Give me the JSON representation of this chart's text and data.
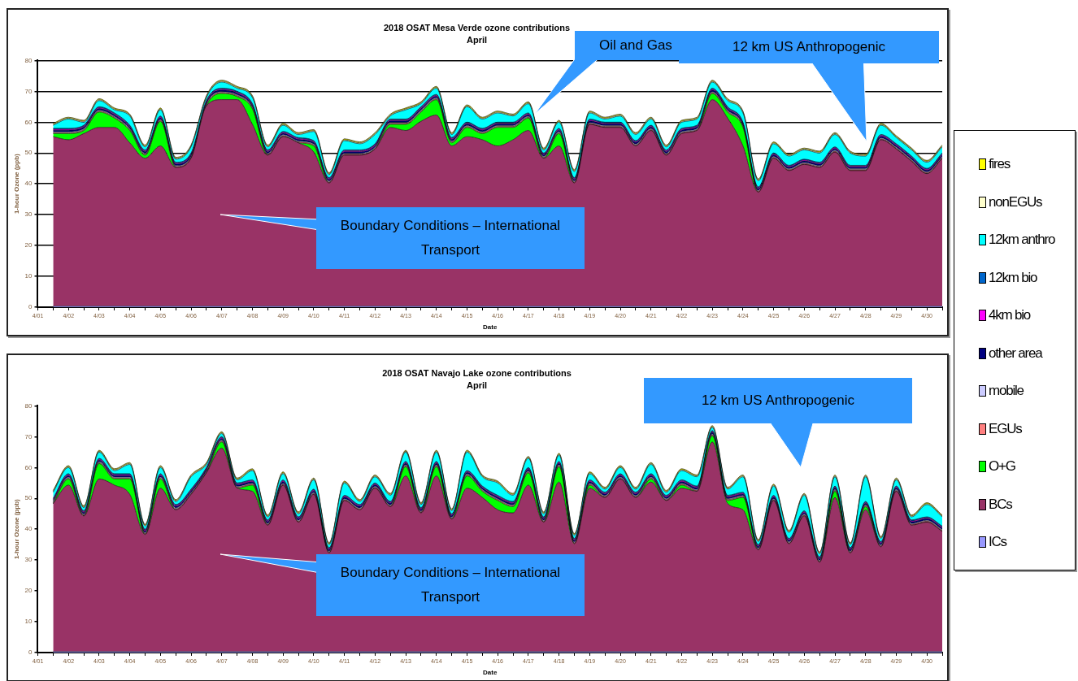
{
  "chart_data": [
    {
      "type": "area",
      "title": "2018 OSAT Mesa Verde ozone contributions",
      "subtitle": "April",
      "xlabel": "Date",
      "ylabel": "1-hour Ozone (ppb)",
      "stacked": true,
      "grid": "y",
      "legend": "right",
      "ylim": [
        0,
        80
      ],
      "yticks": [
        0,
        10,
        20,
        30,
        40,
        50,
        60,
        70,
        80
      ],
      "categories": [
        "4/01",
        null,
        "4/02",
        null,
        "4/03",
        null,
        "4/04",
        null,
        "4/05",
        null,
        "4/06",
        null,
        "4/07",
        null,
        "4/08",
        null,
        "4/09",
        null,
        "4/10",
        null,
        "4/11",
        null,
        "4/12",
        null,
        "4/13",
        null,
        "4/14",
        null,
        "4/15",
        null,
        "4/16",
        null,
        "4/17",
        null,
        "4/18",
        null,
        "4/19",
        null,
        "4/20",
        null,
        "4/21",
        null,
        "4/22",
        null,
        "4/23",
        null,
        "4/24",
        null,
        "4/25",
        null,
        "4/26",
        null,
        "4/27",
        null,
        "4/28",
        null,
        "4/29",
        null,
        "4/30",
        null
      ],
      "annotations": [
        "Oil and Gas",
        "12 km US Anthropogenic",
        "Boundary Conditions – International Transport"
      ],
      "series": [
        {
          "name": "ICs",
          "color": "#9999ff",
          "values": [
            null,
            0.3,
            0.3,
            0.3,
            0.3,
            0.3,
            0.3,
            0.3,
            0.3,
            0.3,
            0.3,
            0.3,
            0.3,
            0.3,
            0.3,
            0.3,
            0.3,
            0.3,
            0.3,
            0.3,
            0.3,
            0.3,
            0.3,
            0.3,
            0.3,
            0.3,
            0.3,
            0.3,
            0.3,
            0.3,
            0.3,
            0.3,
            0.3,
            0.3,
            0.3,
            0.3,
            0.3,
            0.3,
            0.3,
            0.3,
            0.3,
            0.3,
            0.3,
            0.3,
            0.3,
            0.3,
            0.3,
            0.3,
            0.3,
            0.3,
            0.3,
            0.3,
            0.3,
            0.3,
            0.3,
            0.3,
            0.3,
            0.3,
            0.3,
            0.3
          ]
        },
        {
          "name": "BCs",
          "color": "#993366",
          "values": [
            null,
            55,
            54,
            56,
            58,
            58,
            53,
            48,
            52,
            45,
            48,
            65,
            67,
            67,
            59,
            49,
            55,
            53,
            50,
            40,
            49,
            49,
            51,
            58,
            57,
            60,
            62,
            52,
            55,
            54,
            52,
            54,
            57,
            48,
            52,
            40,
            59,
            58,
            58,
            52,
            57,
            49,
            56,
            57,
            67,
            61,
            52,
            37,
            48,
            44,
            46,
            45,
            50,
            44,
            44,
            54,
            51,
            47,
            43,
            48
          ]
        },
        {
          "name": "O+G",
          "color": "#00ff00",
          "values": [
            null,
            1,
            2,
            1,
            5,
            3,
            4,
            1,
            8,
            0,
            0,
            0,
            2,
            1,
            5,
            0,
            0,
            0,
            2,
            0,
            0,
            0,
            0,
            1,
            2,
            3,
            5,
            1,
            3,
            2,
            6,
            4,
            4,
            0,
            4,
            0,
            0,
            0,
            0,
            0,
            0,
            0,
            0,
            0,
            2,
            2,
            6,
            0,
            0,
            0,
            0,
            0,
            0,
            0,
            0,
            0,
            0,
            0,
            0,
            0
          ]
        },
        {
          "name": "EGUs",
          "color": "#ff8080",
          "values": [
            null,
            0.3,
            0.3,
            0.3,
            0.3,
            0.3,
            0.3,
            0.3,
            0.3,
            0.3,
            0.3,
            0.3,
            0.3,
            0.3,
            0.3,
            0.3,
            0.3,
            0.3,
            0.3,
            0.3,
            0.3,
            0.3,
            0.3,
            0.3,
            0.3,
            0.3,
            0.3,
            0.3,
            0.3,
            0.3,
            0.3,
            0.3,
            0.3,
            0.3,
            0.3,
            0.3,
            0.3,
            0.3,
            0.3,
            0.3,
            0.3,
            0.3,
            0.3,
            0.3,
            0.3,
            0.3,
            0.3,
            0.3,
            0.3,
            0.3,
            0.3,
            0.3,
            0.3,
            0.3,
            0.3,
            0.3,
            0.3,
            0.3,
            0.3,
            0.3
          ]
        },
        {
          "name": "mobile",
          "color": "#ccccff",
          "values": [
            null,
            0.3,
            0.3,
            0.3,
            0.3,
            0.3,
            0.3,
            0.3,
            0.3,
            0.3,
            0.3,
            0.3,
            0.3,
            0.3,
            0.3,
            0.3,
            0.3,
            0.3,
            0.3,
            0.3,
            0.3,
            0.3,
            0.3,
            0.3,
            0.3,
            0.3,
            0.3,
            0.3,
            0.3,
            0.3,
            0.3,
            0.3,
            0.3,
            0.3,
            0.3,
            0.3,
            0.3,
            0.3,
            0.3,
            0.3,
            0.3,
            0.3,
            0.3,
            0.3,
            0.3,
            0.3,
            0.3,
            0.3,
            0.3,
            0.3,
            0.3,
            0.3,
            0.3,
            0.3,
            0.3,
            0.3,
            0.3,
            0.3,
            0.3,
            0.3
          ]
        },
        {
          "name": "other area",
          "color": "#000080",
          "values": [
            null,
            0.5,
            0.5,
            0.5,
            0.5,
            0.5,
            0.5,
            0.5,
            0.5,
            0.5,
            0.5,
            0.5,
            0.5,
            0.5,
            0.5,
            0.5,
            0.5,
            0.5,
            0.5,
            0.5,
            0.5,
            0.5,
            0.5,
            0.5,
            0.5,
            0.5,
            0.5,
            0.5,
            0.5,
            0.5,
            0.5,
            0.5,
            0.5,
            0.5,
            0.5,
            0.5,
            0.5,
            0.5,
            0.5,
            0.5,
            0.5,
            0.5,
            0.5,
            0.5,
            0.5,
            0.5,
            0.5,
            0.5,
            0.5,
            0.5,
            0.5,
            0.5,
            0.5,
            0.5,
            0.5,
            0.5,
            0.5,
            0.5,
            0.5,
            0.5
          ]
        },
        {
          "name": "4km bio",
          "color": "#ff00ff",
          "values": [
            null,
            0.3,
            0.3,
            0.3,
            0.3,
            0.3,
            0.3,
            0.3,
            0.3,
            0.3,
            0.3,
            0.3,
            0.3,
            0.3,
            0.3,
            0.3,
            0.3,
            0.3,
            0.3,
            0.3,
            0.3,
            0.3,
            0.3,
            0.3,
            0.3,
            0.3,
            0.3,
            0.3,
            0.3,
            0.3,
            0.3,
            0.3,
            0.3,
            0.3,
            0.3,
            0.3,
            0.3,
            0.3,
            0.3,
            0.3,
            0.3,
            0.3,
            0.3,
            0.3,
            0.3,
            0.3,
            0.3,
            0.3,
            0.3,
            0.3,
            0.3,
            0.3,
            0.3,
            0.3,
            0.3,
            0.3,
            0.3,
            0.3,
            0.3,
            0.3
          ]
        },
        {
          "name": "12km bio",
          "color": "#0066cc",
          "values": [
            null,
            0.3,
            0.3,
            0.3,
            0.3,
            0.3,
            0.3,
            0.3,
            0.3,
            0.3,
            0.3,
            0.3,
            0.3,
            0.3,
            0.3,
            0.3,
            0.3,
            0.3,
            0.3,
            0.3,
            0.3,
            0.3,
            0.3,
            0.3,
            0.3,
            0.3,
            0.3,
            0.3,
            0.3,
            0.3,
            0.3,
            0.3,
            0.3,
            0.3,
            0.3,
            0.3,
            0.3,
            0.3,
            0.3,
            0.3,
            0.3,
            0.3,
            0.3,
            0.3,
            0.3,
            0.3,
            0.3,
            0.3,
            0.3,
            0.3,
            0.3,
            0.3,
            0.3,
            0.3,
            0.3,
            0.3,
            0.3,
            0.3,
            0.3,
            0.3
          ]
        },
        {
          "name": "12km anthro",
          "color": "#00ffff",
          "values": [
            null,
            1,
            3,
            1,
            2,
            1,
            3,
            1,
            2,
            1,
            2,
            1,
            2,
            1,
            2,
            1,
            2,
            1,
            3,
            1,
            3,
            2,
            3,
            1,
            3,
            1,
            2,
            1,
            5,
            3,
            3,
            2,
            3,
            1,
            2,
            2,
            2,
            1,
            2,
            2,
            2,
            1,
            2,
            2,
            2,
            2,
            3,
            2,
            3,
            3,
            3,
            3,
            4,
            4,
            3,
            3,
            2,
            2,
            2,
            2
          ]
        },
        {
          "name": "nonEGUs",
          "color": "#ffffcc",
          "values": [
            null,
            0.3,
            0.3,
            0.3,
            0.3,
            0.3,
            0.3,
            0.3,
            0.3,
            0.3,
            0.3,
            0.3,
            0.3,
            0.3,
            0.3,
            0.3,
            0.3,
            0.3,
            0.3,
            0.3,
            0.3,
            0.3,
            0.3,
            0.3,
            0.3,
            0.3,
            0.3,
            0.3,
            0.3,
            0.3,
            0.3,
            0.3,
            0.3,
            0.3,
            0.3,
            0.3,
            0.3,
            0.3,
            0.3,
            0.3,
            0.3,
            0.3,
            0.3,
            0.3,
            0.3,
            0.3,
            0.3,
            0.3,
            0.3,
            0.3,
            0.3,
            0.3,
            0.3,
            0.3,
            0.3,
            0.3,
            0.3,
            0.3,
            0.3,
            0.3
          ]
        },
        {
          "name": "fires",
          "color": "#ffff00",
          "values": [
            null,
            0.3,
            0.3,
            0.3,
            0.3,
            0.3,
            0.3,
            0.3,
            0.3,
            0.3,
            0.3,
            0.3,
            0.3,
            0.3,
            0.3,
            0.3,
            0.3,
            0.3,
            0.3,
            0.3,
            0.3,
            0.3,
            0.3,
            0.3,
            0.3,
            0.3,
            0.3,
            0.3,
            0.3,
            0.3,
            0.3,
            0.3,
            0.3,
            0.3,
            0.3,
            0.3,
            0.3,
            0.3,
            0.3,
            0.3,
            0.3,
            0.3,
            0.3,
            0.3,
            0.3,
            0.3,
            0.3,
            0.3,
            0.3,
            0.3,
            0.3,
            0.3,
            0.3,
            0.3,
            0.3,
            0.3,
            0.3,
            0.3,
            0.3,
            0.3
          ]
        }
      ]
    },
    {
      "type": "area",
      "title": "2018 OSAT Navajo Lake ozone contributions",
      "subtitle": "April",
      "xlabel": "Date",
      "ylabel": "1-hour Ozone (ppb)",
      "stacked": true,
      "ylim": [
        0,
        80
      ],
      "yticks": [
        0,
        10,
        20,
        30,
        40,
        50,
        60,
        70,
        80
      ],
      "categories": [
        "4/01",
        null,
        "4/02",
        null,
        "4/03",
        null,
        "4/04",
        null,
        "4/05",
        null,
        "4/06",
        null,
        "4/07",
        null,
        "4/08",
        null,
        "4/09",
        null,
        "4/10",
        null,
        "4/11",
        null,
        "4/12",
        null,
        "4/13",
        null,
        "4/14",
        null,
        "4/15",
        null,
        "4/16",
        null,
        "4/17",
        null,
        "4/18",
        null,
        "4/19",
        null,
        "4/20",
        null,
        "4/21",
        null,
        "4/22",
        null,
        "4/23",
        null,
        "4/24",
        null,
        "4/25",
        null,
        "4/26",
        null,
        "4/27",
        null,
        "4/28",
        null,
        "4/29",
        null,
        "4/30",
        null
      ],
      "annotations": [
        "12 km US Anthropogenic",
        "Boundary Conditions – International Transport"
      ],
      "series": [
        {
          "color": "#9999ff",
          "values": [
            null,
            0.3,
            0.3,
            0.3,
            0.3,
            0.3,
            0.3,
            0.3,
            0.3,
            0.3,
            0.3,
            0.3,
            0.3,
            0.3,
            0.3,
            0.3,
            0.3,
            0.3,
            0.3,
            0.3,
            0.3,
            0.3,
            0.3,
            0.3,
            0.3,
            0.3,
            0.3,
            0.3,
            0.3,
            0.3,
            0.3,
            0.3,
            0.3,
            0.3,
            0.3,
            0.3,
            0.3,
            0.3,
            0.3,
            0.3,
            0.3,
            0.3,
            0.3,
            0.3,
            0.3,
            0.3,
            0.3,
            0.3,
            0.3,
            0.3,
            0.3,
            0.3,
            0.3,
            0.3,
            0.3,
            0.3,
            0.3,
            0.3,
            0.3,
            0.3
          ]
        },
        {
          "color": "#993366",
          "values": [
            null,
            48,
            54,
            44,
            56,
            54,
            51,
            38,
            53,
            46,
            51,
            58,
            66,
            53,
            52,
            41,
            54,
            42,
            51,
            32,
            49,
            46,
            53,
            47,
            57,
            45,
            57,
            43,
            53,
            50,
            46,
            45,
            54,
            42,
            55,
            35,
            53,
            50,
            56,
            50,
            55,
            49,
            53,
            52,
            68,
            48,
            46,
            33,
            49,
            35,
            44,
            29,
            50,
            32,
            46,
            34,
            52,
            41,
            42,
            39
          ]
        },
        {
          "color": "#00ff00",
          "values": [
            null,
            0,
            2,
            0,
            5,
            2,
            5,
            0,
            3,
            0,
            0,
            0,
            2,
            0,
            2,
            0,
            0,
            0,
            0,
            0,
            0,
            0,
            0,
            0,
            3,
            0,
            3,
            0,
            4,
            2,
            3,
            2,
            4,
            0,
            5,
            0,
            1,
            0,
            0,
            0,
            1,
            0,
            1,
            0,
            2,
            1,
            4,
            0,
            0,
            0,
            0,
            0,
            2,
            0,
            1,
            0,
            0,
            0,
            0,
            0
          ]
        },
        {
          "color": "#ff8080",
          "values": [
            null,
            0.3,
            0.3,
            0.3,
            0.3,
            0.3,
            0.3,
            0.3,
            0.3,
            0.3,
            0.3,
            0.3,
            0.3,
            0.3,
            0.3,
            0.3,
            0.3,
            0.3,
            0.3,
            0.3,
            0.3,
            0.3,
            0.3,
            0.3,
            0.3,
            0.3,
            0.3,
            0.3,
            0.3,
            0.3,
            0.3,
            0.3,
            0.3,
            0.3,
            0.3,
            0.3,
            0.3,
            0.3,
            0.3,
            0.3,
            0.3,
            0.3,
            0.3,
            0.3,
            0.3,
            0.3,
            0.3,
            0.3,
            0.3,
            0.3,
            0.3,
            0.3,
            0.3,
            0.3,
            0.3,
            0.3,
            0.3,
            0.3,
            0.3,
            0.3
          ]
        },
        {
          "color": "#ccccff",
          "values": [
            null,
            0.3,
            0.3,
            0.3,
            0.3,
            0.3,
            0.3,
            0.3,
            0.3,
            0.3,
            0.3,
            0.3,
            0.3,
            0.3,
            0.3,
            0.3,
            0.3,
            0.3,
            0.3,
            0.3,
            0.3,
            0.3,
            0.3,
            0.3,
            0.3,
            0.3,
            0.3,
            0.3,
            0.3,
            0.3,
            0.3,
            0.3,
            0.3,
            0.3,
            0.3,
            0.3,
            0.3,
            0.3,
            0.3,
            0.3,
            0.3,
            0.3,
            0.3,
            0.3,
            0.3,
            0.3,
            0.3,
            0.3,
            0.3,
            0.3,
            0.3,
            0.3,
            0.3,
            0.3,
            0.3,
            0.3,
            0.3,
            0.3,
            0.3,
            0.3
          ]
        },
        {
          "color": "#000080",
          "values": [
            null,
            0.5,
            0.5,
            0.5,
            0.5,
            0.5,
            0.5,
            0.5,
            0.5,
            0.5,
            0.5,
            0.5,
            0.5,
            0.5,
            0.5,
            0.5,
            0.5,
            0.5,
            0.5,
            0.5,
            0.5,
            0.5,
            0.5,
            0.5,
            0.5,
            0.5,
            0.5,
            0.5,
            0.5,
            0.5,
            0.5,
            0.5,
            0.5,
            0.5,
            0.5,
            0.5,
            0.5,
            0.5,
            0.5,
            0.5,
            0.5,
            0.5,
            0.5,
            0.5,
            0.5,
            0.5,
            0.5,
            0.5,
            0.5,
            0.5,
            0.5,
            0.5,
            0.5,
            0.5,
            0.5,
            0.5,
            0.5,
            0.5,
            0.5,
            0.5
          ]
        },
        {
          "color": "#ff00ff",
          "values": [
            null,
            0.3,
            0.3,
            0.3,
            0.3,
            0.3,
            0.3,
            0.3,
            0.3,
            0.3,
            0.3,
            0.3,
            0.3,
            0.3,
            0.3,
            0.3,
            0.3,
            0.3,
            0.3,
            0.3,
            0.3,
            0.3,
            0.3,
            0.3,
            0.3,
            0.3,
            0.3,
            0.3,
            0.3,
            0.3,
            0.3,
            0.3,
            0.3,
            0.3,
            0.3,
            0.3,
            0.3,
            0.3,
            0.3,
            0.3,
            0.3,
            0.3,
            0.3,
            0.3,
            0.3,
            0.3,
            0.3,
            0.3,
            0.3,
            0.3,
            0.3,
            0.3,
            0.3,
            0.3,
            0.3,
            0.3,
            0.3,
            0.3,
            0.3,
            0.3
          ]
        },
        {
          "color": "#0066cc",
          "values": [
            null,
            0.3,
            0.3,
            0.3,
            0.3,
            0.3,
            0.3,
            0.3,
            0.3,
            0.3,
            0.3,
            0.3,
            0.3,
            0.3,
            0.3,
            0.3,
            0.3,
            0.3,
            0.3,
            0.3,
            0.3,
            0.3,
            0.3,
            0.3,
            0.3,
            0.3,
            0.3,
            0.3,
            0.3,
            0.3,
            0.3,
            0.3,
            0.3,
            0.3,
            0.3,
            0.3,
            0.3,
            0.3,
            0.3,
            0.3,
            0.3,
            0.3,
            0.3,
            0.3,
            0.3,
            0.3,
            0.3,
            0.3,
            0.3,
            0.3,
            0.3,
            0.3,
            0.3,
            0.3,
            0.3,
            0.3,
            0.3,
            0.3,
            0.3,
            0.3
          ]
        },
        {
          "color": "#00ffff",
          "values": [
            null,
            2,
            2,
            1,
            2,
            1,
            3,
            1,
            2,
            1,
            4,
            1,
            1,
            1,
            3,
            1,
            2,
            1,
            3,
            1,
            4,
            1,
            2,
            2,
            3,
            1,
            3,
            1,
            6,
            3,
            4,
            2,
            3,
            1,
            2,
            1,
            2,
            1,
            2,
            1,
            3,
            1,
            3,
            3,
            1,
            2,
            5,
            1,
            3,
            2,
            5,
            1,
            3,
            1,
            8,
            1,
            2,
            1,
            4,
            3
          ]
        },
        {
          "color": "#ffffcc",
          "values": [
            null,
            0.3,
            0.3,
            0.3,
            0.3,
            0.3,
            0.3,
            0.3,
            0.3,
            0.3,
            0.3,
            0.3,
            0.3,
            0.3,
            0.3,
            0.3,
            0.3,
            0.3,
            0.3,
            0.3,
            0.3,
            0.3,
            0.3,
            0.3,
            0.3,
            0.3,
            0.3,
            0.3,
            0.3,
            0.3,
            0.3,
            0.3,
            0.3,
            0.3,
            0.3,
            0.3,
            0.3,
            0.3,
            0.3,
            0.3,
            0.3,
            0.3,
            0.3,
            0.3,
            0.3,
            0.3,
            0.3,
            0.3,
            0.3,
            0.3,
            0.3,
            0.3,
            0.3,
            0.3,
            0.3,
            0.3,
            0.3,
            0.3,
            0.3,
            0.3
          ]
        },
        {
          "color": "#ffff00",
          "values": [
            null,
            0.3,
            0.3,
            0.3,
            0.3,
            0.3,
            0.3,
            0.3,
            0.3,
            0.3,
            0.3,
            0.3,
            0.3,
            0.3,
            0.3,
            0.3,
            0.3,
            0.3,
            0.3,
            0.3,
            0.3,
            0.3,
            0.3,
            0.3,
            0.3,
            0.3,
            0.3,
            0.3,
            0.3,
            0.3,
            0.3,
            0.3,
            0.3,
            0.3,
            0.3,
            0.3,
            0.3,
            0.3,
            0.3,
            0.3,
            0.3,
            0.3,
            0.3,
            0.3,
            0.3,
            0.3,
            0.3,
            0.3,
            0.3,
            0.3,
            0.3,
            0.3,
            0.3,
            0.3,
            0.3,
            0.3,
            0.3,
            0.3,
            0.3,
            0.3
          ]
        }
      ]
    }
  ]
}
